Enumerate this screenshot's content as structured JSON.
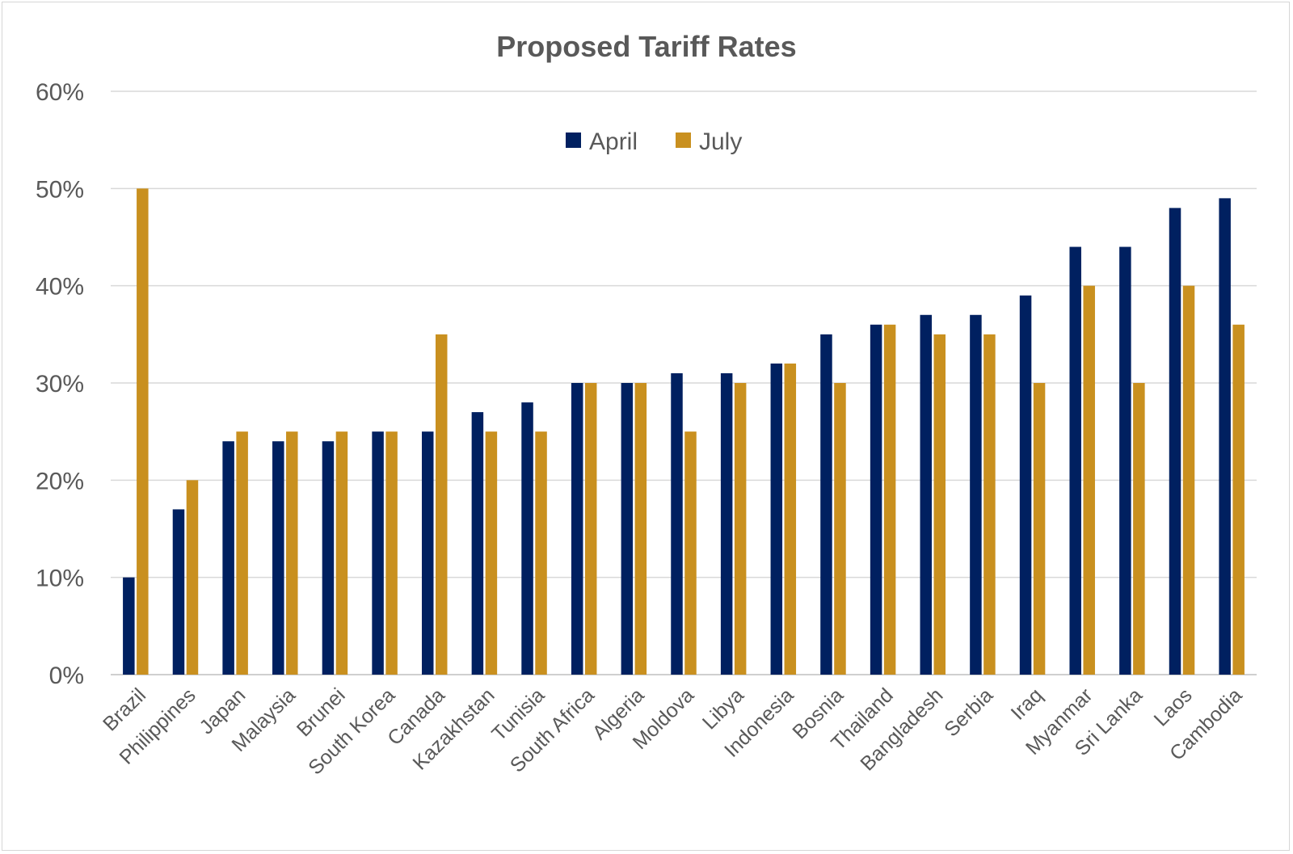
{
  "chart_data": {
    "type": "bar",
    "title": "Proposed Tariff Rates",
    "xlabel": "",
    "ylabel": "",
    "ylim": [
      0,
      60
    ],
    "yticks": [
      "0%",
      "10%",
      "20%",
      "30%",
      "40%",
      "50%",
      "60%"
    ],
    "grid": true,
    "legend_position": "top-center",
    "categories": [
      "Brazil",
      "Philippines",
      "Japan",
      "Malaysia",
      "Brunei",
      "South Korea",
      "Canada",
      "Kazakhstan",
      "Tunisia",
      "South Africa",
      "Algeria",
      "Moldova",
      "Libya",
      "Indonesia",
      "Bosnia",
      "Thailand",
      "Bangladesh",
      "Serbia",
      "Iraq",
      "Myanmar",
      "Sri Lanka",
      "Laos",
      "Cambodia"
    ],
    "series": [
      {
        "name": "April",
        "color": "#002060",
        "values": [
          10,
          17,
          24,
          24,
          24,
          25,
          25,
          27,
          28,
          30,
          30,
          31,
          31,
          32,
          35,
          36,
          37,
          37,
          39,
          44,
          44,
          48,
          49
        ]
      },
      {
        "name": "July",
        "color": "#C9901F",
        "values": [
          50,
          20,
          25,
          25,
          25,
          25,
          35,
          25,
          25,
          30,
          30,
          25,
          30,
          32,
          30,
          36,
          35,
          35,
          30,
          40,
          30,
          40,
          36
        ]
      }
    ]
  }
}
